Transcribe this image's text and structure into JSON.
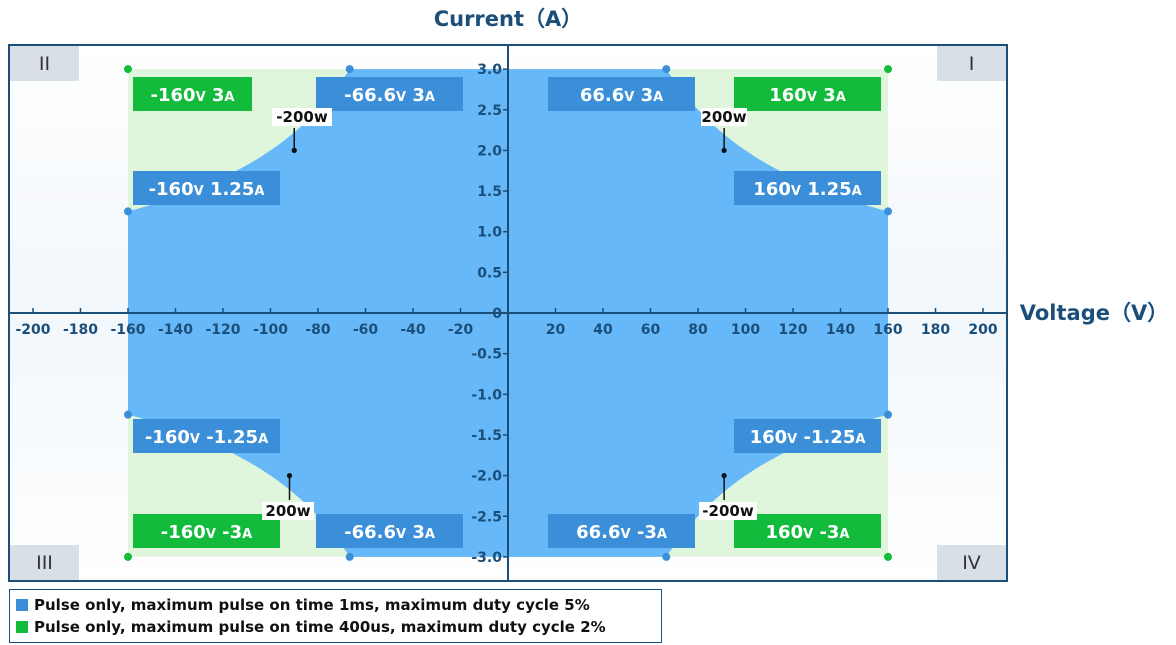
{
  "chart_data": {
    "type": "area",
    "title": "",
    "xlabel": "Voltage（V）",
    "ylabel": "Current（A）",
    "xlim": [
      -200,
      200
    ],
    "ylim": [
      -3.0,
      3.0
    ],
    "x_ticks": [
      "-200",
      "-180",
      "-160",
      "-140",
      "-120",
      "-100",
      "-80",
      "-60",
      "-40",
      "-20",
      "20",
      "40",
      "60",
      "80",
      "100",
      "120",
      "140",
      "160",
      "180",
      "200"
    ],
    "y_ticks": [
      "3.0",
      "2.5",
      "2.0",
      "1.5",
      "1.0",
      "0.5",
      "0",
      "-0.5",
      "-1.0",
      "-1.5",
      "-2.0",
      "-2.5",
      "-3.0"
    ],
    "quadrants": [
      "I",
      "II",
      "III",
      "IV"
    ],
    "series": [
      {
        "name": "Pulse only, maximum pulse on time 1ms, maximum duty cycle 5%",
        "color": "#66b8f8",
        "boundary_power_w": 200,
        "v_max": 160,
        "i_max": 3.0,
        "corner_points": [
          [
            66.6,
            3
          ],
          [
            160,
            1.25
          ]
        ]
      },
      {
        "name": "Pulse only, maximum pulse on time 400us, maximum duty cycle 2%",
        "color": "#dff6dc",
        "v_max": 160,
        "i_max": 3.0,
        "corner_points": [
          [
            160,
            3
          ]
        ]
      }
    ],
    "point_labels": [
      {
        "v": "-160V",
        "i": "3A"
      },
      {
        "v": "-66.6V",
        "i": "3A"
      },
      {
        "v": "66.6V",
        "i": "3A"
      },
      {
        "v": "160V",
        "i": "3A"
      },
      {
        "v": "-160V",
        "i": "1.25A"
      },
      {
        "v": "160V",
        "i": "1.25A"
      },
      {
        "v": "-160V",
        "i": "-1.25A"
      },
      {
        "v": "160V",
        "i": "-1.25A"
      },
      {
        "v": "-160V",
        "i": "-3A"
      },
      {
        "v": "-66.6V",
        "i": "3A"
      },
      {
        "v": "66.6V",
        "i": "-3A"
      },
      {
        "v": "160V",
        "i": "-3A"
      }
    ],
    "power_labels": [
      "-200w",
      "200w",
      "200w",
      "-200w"
    ]
  },
  "legend": [
    {
      "text": "Pulse only, maximum pulse on time 1ms, maximum duty cycle 5%",
      "color": "#3b8ed8"
    },
    {
      "text": "Pulse only, maximum pulse on time 400us, maximum duty cycle 2%",
      "color": "#12bb3c"
    }
  ]
}
